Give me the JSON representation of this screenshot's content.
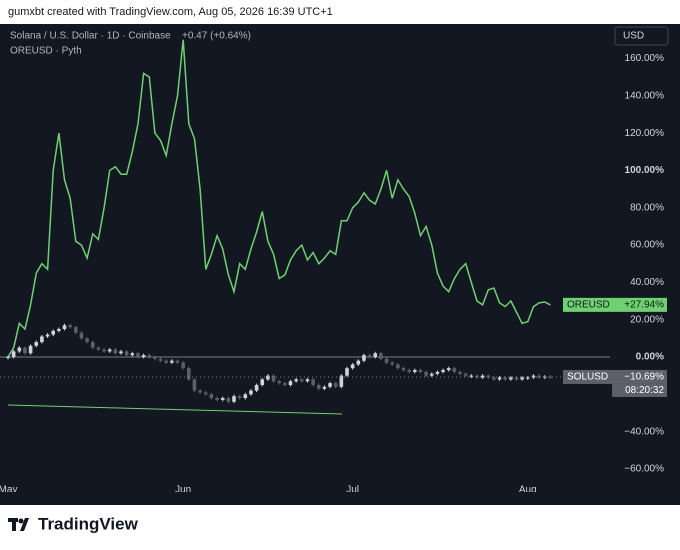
{
  "header": "gumxbt created with TradingView.com, Aug 05, 2026 16:39 UTC+1",
  "footer_logo": "TradingView",
  "chart_data": {
    "type": "line",
    "legend": {
      "main": "Solana / U.S. Dollar · 1D · Coinbase",
      "change": "+0.47 (+0.64%)",
      "compare": "OREUSD · Pyth"
    },
    "currency": "USD",
    "categories": [
      "May",
      null,
      null,
      null,
      null,
      null,
      null,
      null,
      null,
      null,
      null,
      null,
      null,
      null,
      null,
      null,
      null,
      null,
      null,
      null,
      null,
      null,
      null,
      null,
      null,
      null,
      null,
      null,
      null,
      null,
      null,
      "Jun",
      null,
      null,
      null,
      null,
      null,
      null,
      null,
      null,
      null,
      null,
      null,
      null,
      null,
      null,
      null,
      null,
      null,
      null,
      null,
      null,
      null,
      null,
      null,
      null,
      null,
      null,
      null,
      null,
      null,
      "Jul",
      null,
      null,
      null,
      null,
      null,
      null,
      null,
      null,
      null,
      null,
      null,
      null,
      null,
      null,
      null,
      null,
      null,
      null,
      null,
      null,
      null,
      null,
      null,
      null,
      null,
      null,
      null,
      null,
      null,
      null,
      "Aug",
      null,
      null,
      null,
      null
    ],
    "ylim": [
      -70,
      175
    ],
    "yticks": [
      {
        "value": 160,
        "label": "160.00%"
      },
      {
        "value": 140,
        "label": "140.00%"
      },
      {
        "value": 120,
        "label": "120.00%"
      },
      {
        "value": 100,
        "label": "100.00%"
      },
      {
        "value": 80,
        "label": "80.00%"
      },
      {
        "value": 60,
        "label": "60.00%"
      },
      {
        "value": 40,
        "label": "40.00%"
      },
      {
        "value": 20,
        "label": "20.00%"
      },
      {
        "value": 0,
        "label": "0.00%"
      },
      {
        "value": -20,
        "label": "−20.00%"
      },
      {
        "value": -40,
        "label": "−40.00%"
      },
      {
        "value": -60,
        "label": "−60.00%"
      }
    ],
    "grid": false,
    "series": [
      {
        "name": "OREUSD",
        "type": "line",
        "color": "#6fd16f",
        "last_label": "+27.94%",
        "values": [
          0,
          5,
          18,
          15,
          28,
          45,
          50,
          47,
          100,
          120,
          95,
          85,
          62,
          60,
          53,
          66,
          63,
          80,
          100,
          102,
          98,
          98,
          110,
          125,
          152,
          150,
          120,
          116,
          108,
          125,
          140,
          170,
          125,
          117,
          90,
          47,
          55,
          65,
          58,
          44,
          35,
          50,
          47,
          58,
          67,
          78,
          62,
          55,
          42,
          44,
          52,
          57,
          60,
          52,
          56,
          50,
          53,
          57,
          55,
          73,
          73,
          80,
          83,
          88,
          84,
          82,
          90,
          100,
          85,
          95,
          90,
          86,
          77,
          65,
          70,
          60,
          45,
          38,
          35,
          42,
          47,
          50,
          40,
          30,
          28,
          36,
          37,
          29,
          27,
          30,
          24,
          18,
          19,
          27,
          29,
          29.5,
          27.94
        ]
      },
      {
        "name": "SOLUSD",
        "type": "candlestick",
        "up_color": "#d1d4dc",
        "down_color": "#5d606b",
        "last_label": "−10.69%",
        "time_to_close": "08:20:32",
        "values": [
          0,
          3,
          5,
          2,
          6,
          8,
          11,
          12,
          14,
          15,
          17,
          16,
          13,
          10,
          8,
          5,
          4,
          3,
          4,
          2,
          3,
          1,
          2,
          0,
          1,
          0,
          -1,
          -2,
          -3,
          -2,
          -3,
          -6,
          -12,
          -18,
          -19,
          -20,
          -22,
          -23,
          -22,
          -24,
          -21,
          -22,
          -20,
          -18,
          -15,
          -12,
          -10,
          -13,
          -14,
          -15,
          -13,
          -12,
          -13,
          -12,
          -15,
          -17,
          -16,
          -14,
          -16,
          -10,
          -6,
          -4,
          -2,
          1,
          0,
          2,
          -1,
          -3,
          -4,
          -6,
          -7,
          -8,
          -7,
          -8,
          -10,
          -9,
          -8,
          -7,
          -6,
          -8,
          -9,
          -10,
          -10,
          -11,
          -10,
          -11,
          -12,
          -11,
          -12,
          -11,
          -12,
          -11,
          -11,
          -10,
          -11,
          -10.5,
          -10.69
        ]
      }
    ]
  }
}
